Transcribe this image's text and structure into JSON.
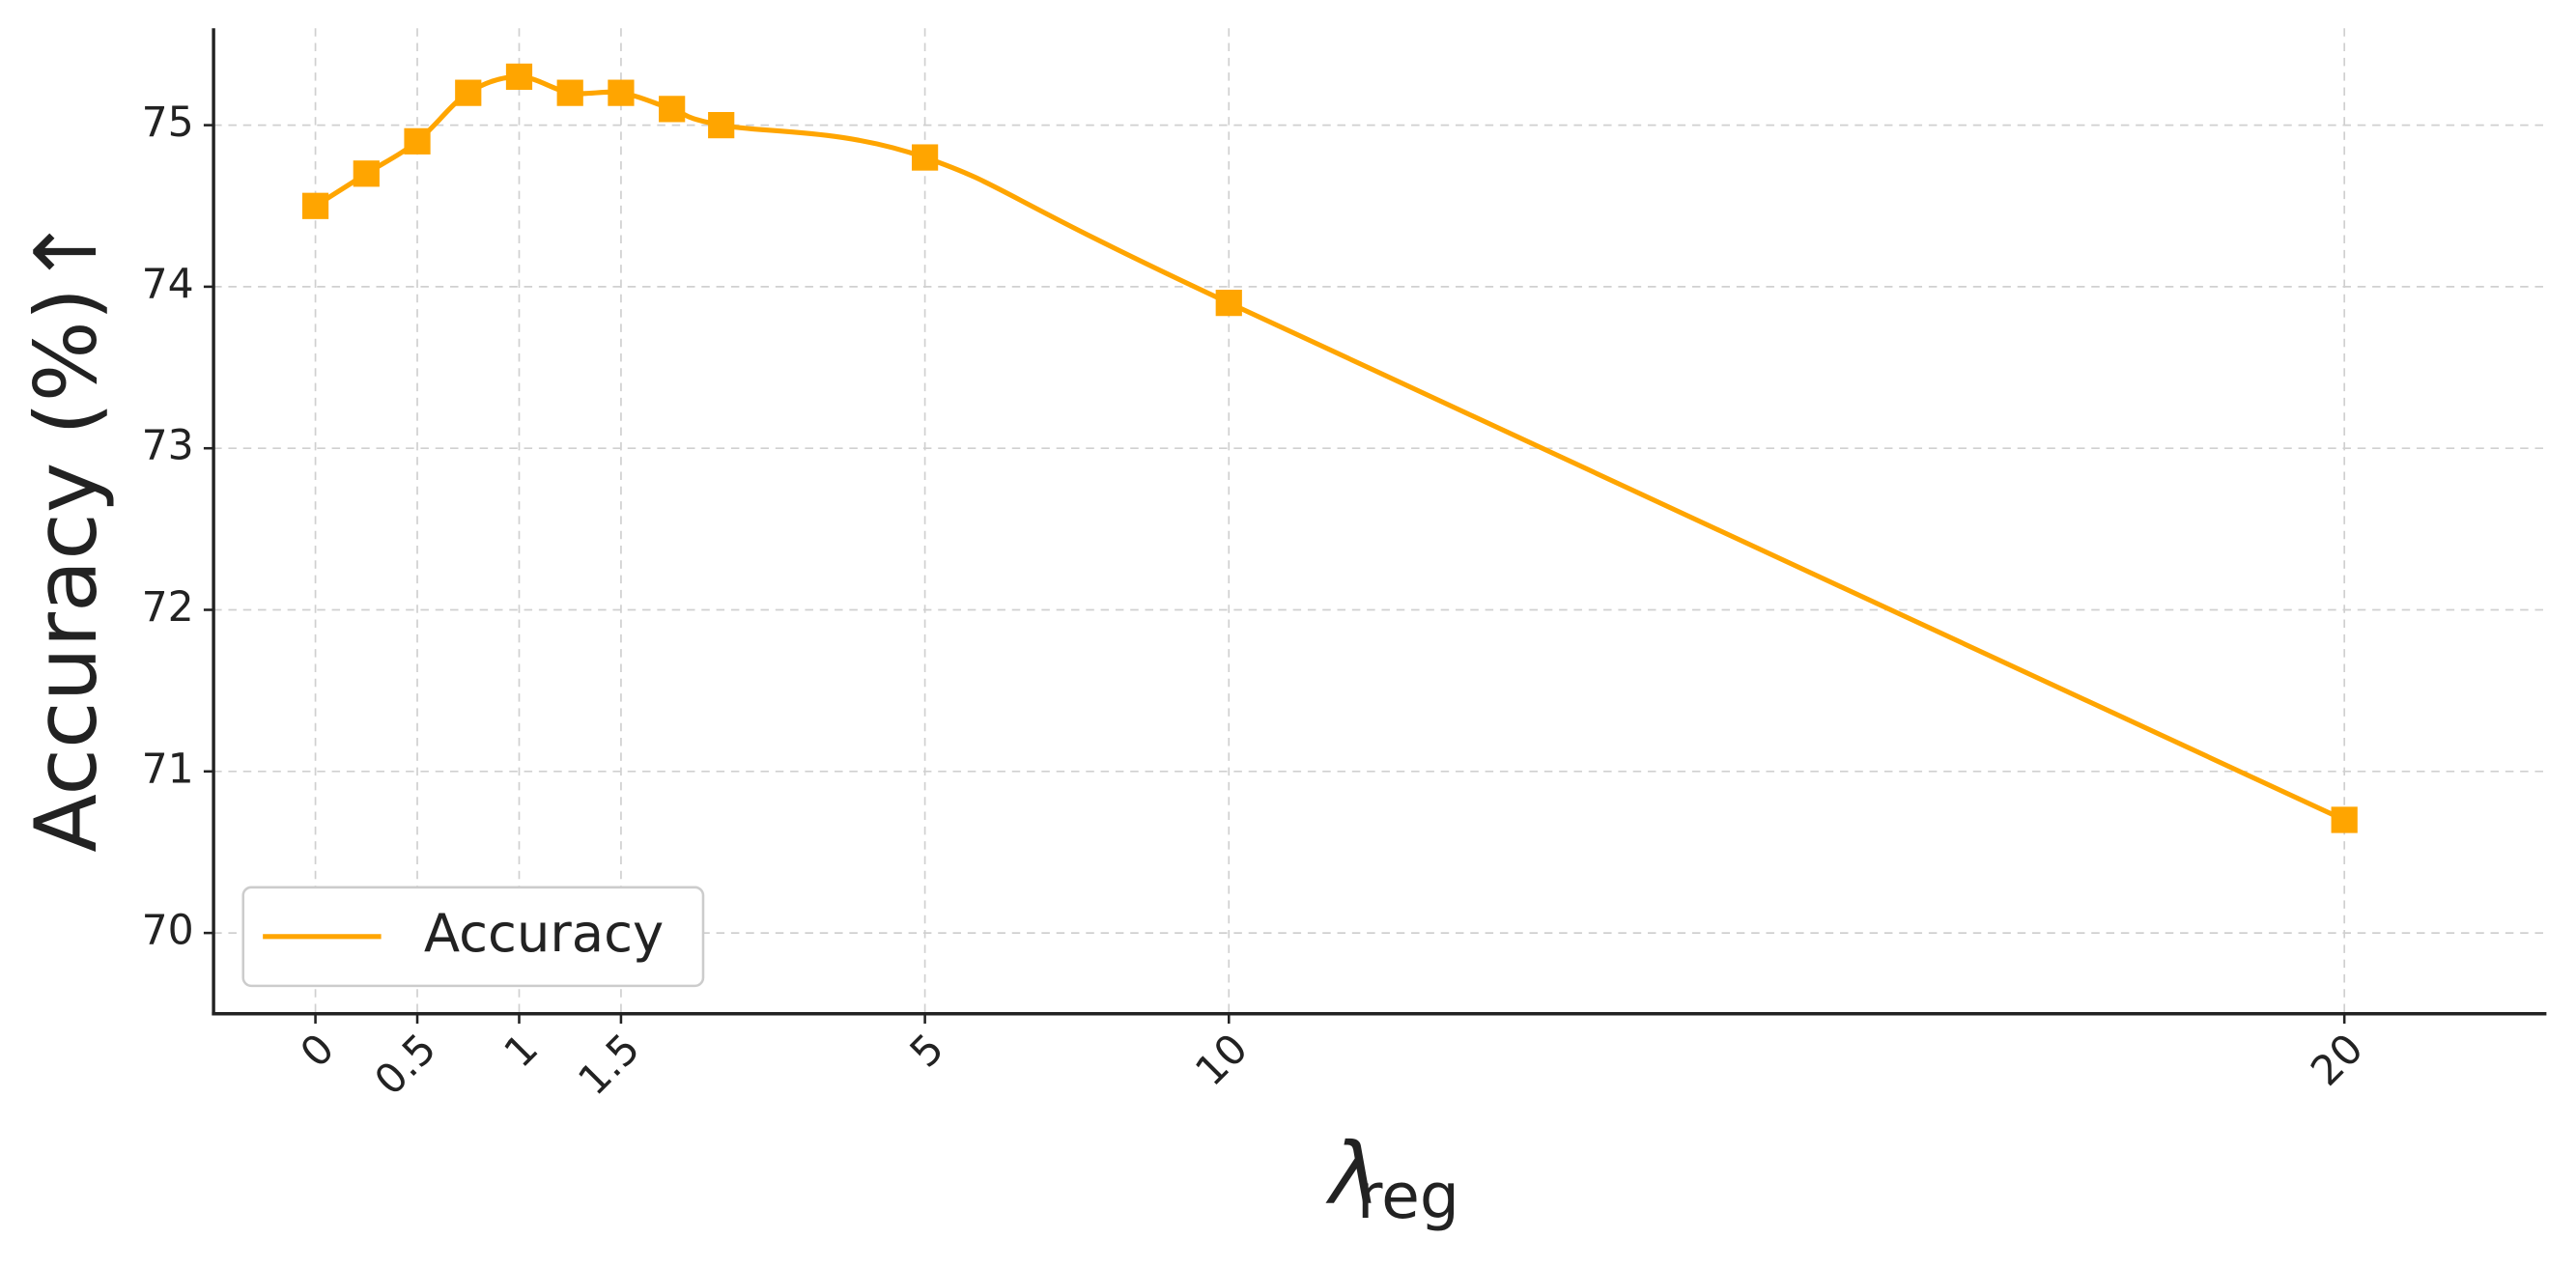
{
  "chart_data": {
    "type": "line",
    "y_label": "Accuracy (%)↑",
    "x_label": "λ",
    "x_label_subscript": "reg",
    "categories": [
      "0",
      null,
      "0.5",
      null,
      "1",
      null,
      "1.5",
      null,
      null,
      "5",
      "10",
      "20"
    ],
    "series": [
      {
        "name": "Accuracy",
        "color": "#FFA500",
        "values": [
          74.5,
          74.7,
          74.9,
          75.2,
          75.3,
          75.2,
          75.2,
          75.1,
          75.0,
          74.8,
          73.9,
          70.7
        ]
      }
    ],
    "ylim": [
      69.5,
      75.6
    ],
    "yticks": [
      70,
      71,
      72,
      73,
      74,
      75
    ],
    "grid": true,
    "legend": "lower left",
    "marker": "square"
  }
}
